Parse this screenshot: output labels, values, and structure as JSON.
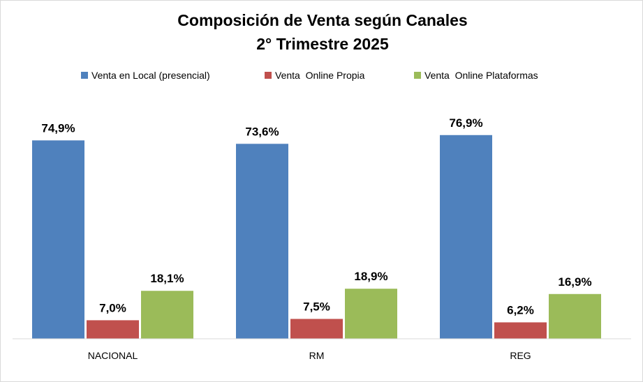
{
  "chart_data": {
    "type": "bar",
    "title": "Composición de Venta según Canales",
    "subtitle": "2° Trimestre 2025",
    "xlabel": "",
    "ylabel": "",
    "categories": [
      "NACIONAL",
      "RM",
      "REG"
    ],
    "series": [
      {
        "name": "Venta en Local (presencial)",
        "color": "#4f81bd",
        "values": [
          74.9,
          73.6,
          76.9
        ],
        "labels": [
          "74,9%",
          "73,6%",
          "76,9%"
        ]
      },
      {
        "name": "Venta  Online Propia",
        "color": "#c0504d",
        "values": [
          7.0,
          7.5,
          6.2
        ],
        "labels": [
          "7,0%",
          "7,5%",
          "6,2%"
        ]
      },
      {
        "name": "Venta  Online Plataformas",
        "color": "#9bbb59",
        "values": [
          18.1,
          18.9,
          16.9
        ],
        "labels": [
          "18,1%",
          "18,9%",
          "16,9%"
        ]
      }
    ],
    "ylim": [
      0,
      80
    ],
    "grid": false,
    "y_axis_visible": false,
    "legend_position": "top",
    "data_labels": true
  }
}
